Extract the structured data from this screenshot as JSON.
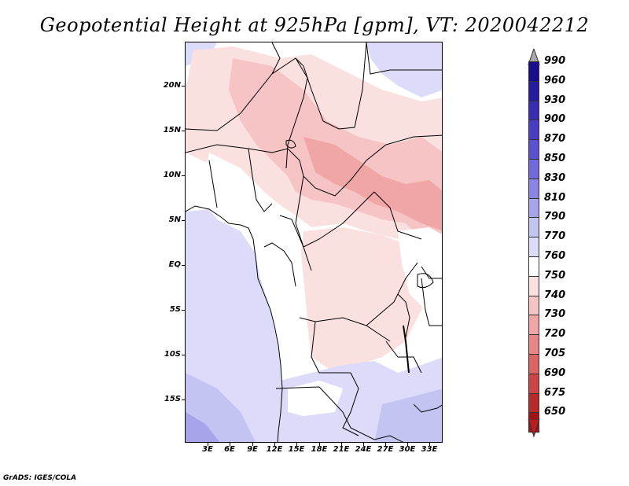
{
  "title": "Geopotential Height at 925hPa [gpm], VT: 2020042212",
  "footer": "GrADS: IGES/COLA",
  "map": {
    "lat_labels": [
      "20N",
      "15N",
      "10N",
      "5N",
      "EQ",
      "5S",
      "10S",
      "15S"
    ],
    "lon_labels": [
      "3E",
      "6E",
      "9E",
      "12E",
      "15E",
      "18E",
      "21E",
      "24E",
      "27E",
      "30E",
      "33E"
    ]
  },
  "colorbar": {
    "labels": [
      "990",
      "960",
      "930",
      "900",
      "870",
      "850",
      "830",
      "810",
      "790",
      "770",
      "760",
      "750",
      "740",
      "730",
      "720",
      "705",
      "690",
      "675",
      "650"
    ],
    "colors": [
      "#1a0a8c",
      "#2a1aa0",
      "#3a2ab4",
      "#4a3cc4",
      "#5c50d0",
      "#7468dc",
      "#8c84e4",
      "#a8a4ec",
      "#c4c4f2",
      "#dcdcfa",
      "#ffffff",
      "#fbe0e0",
      "#f6c4c4",
      "#f0a6a6",
      "#e88686",
      "#dc6464",
      "#cc4444",
      "#b82a2a",
      "#a01414"
    ],
    "top_arrow_color": "#a8a8a8",
    "bottom_arrow_color": "#b81c1c"
  }
}
